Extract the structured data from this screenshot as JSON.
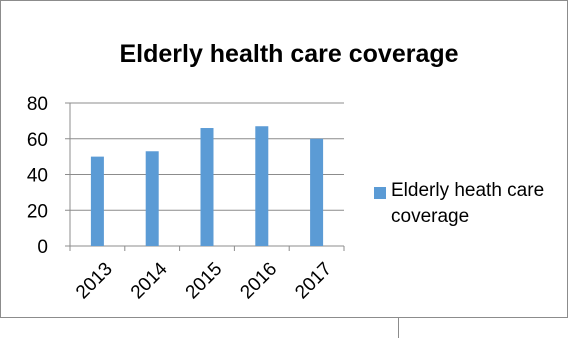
{
  "chart_data": {
    "type": "bar",
    "title": "Elderly health care coverage",
    "categories": [
      "2013",
      "2014",
      "2015",
      "2016",
      "2017"
    ],
    "series": [
      {
        "name": "Elderly heath care coverage",
        "values": [
          50,
          53,
          66,
          67,
          60
        ],
        "color": "#5b9bd5"
      }
    ],
    "yticks": [
      "0",
      "20",
      "40",
      "60",
      "80"
    ],
    "ylim": [
      0,
      80
    ],
    "grid": true,
    "legend_position": "right"
  }
}
